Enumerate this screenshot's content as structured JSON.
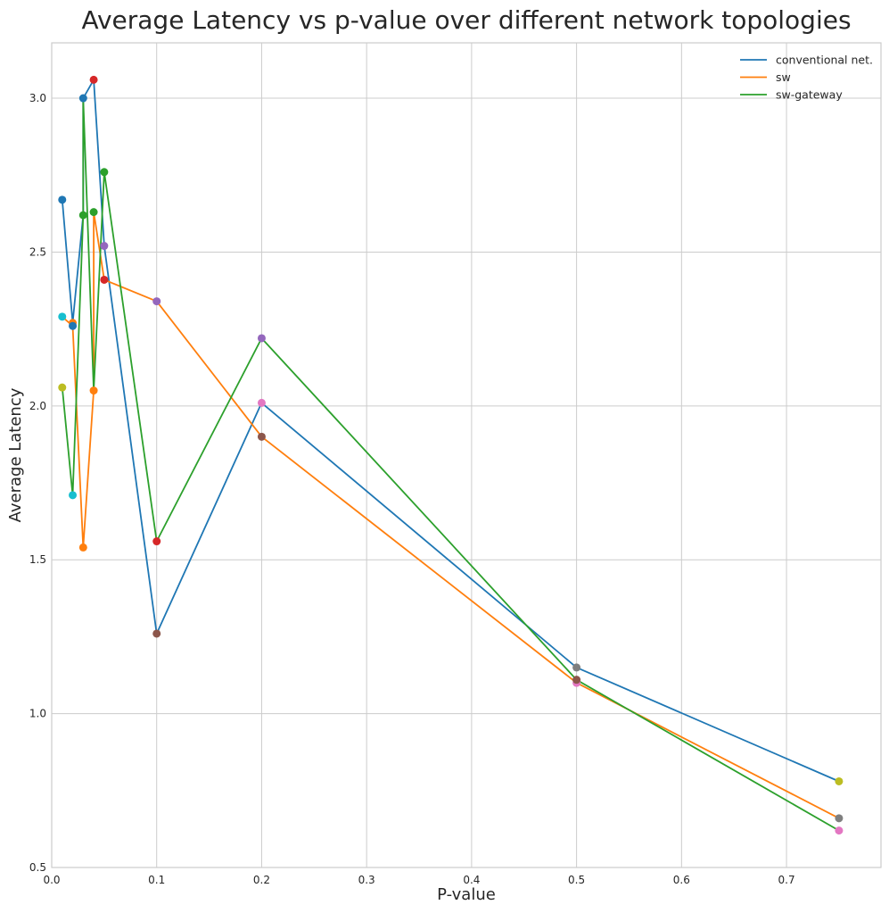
{
  "chart_data": {
    "type": "line",
    "title": "Average Latency vs p-value over different network topologies",
    "xlabel": "P-value",
    "ylabel": "Average Latency",
    "xlim": [
      0.0,
      0.79
    ],
    "ylim": [
      0.5,
      3.18
    ],
    "xticks": [
      "0.0",
      "0.1",
      "0.2",
      "0.3",
      "0.4",
      "0.5",
      "0.6",
      "0.7"
    ],
    "yticks": [
      "0.5",
      "1.0",
      "1.5",
      "2.0",
      "2.5",
      "3.0"
    ],
    "grid": true,
    "legend_position": "top-right",
    "series": [
      {
        "name": "conventional net.",
        "color": "#1f77b4",
        "points": [
          {
            "x": 0.01,
            "y": 2.67
          },
          {
            "x": 0.02,
            "y": 2.27
          },
          {
            "x": 0.03,
            "y": 2.62
          },
          {
            "x": 0.03,
            "y": 3.0
          },
          {
            "x": 0.04,
            "y": 3.06
          },
          {
            "x": 0.05,
            "y": 2.52
          },
          {
            "x": 0.1,
            "y": 1.26
          },
          {
            "x": 0.2,
            "y": 2.01
          },
          {
            "x": 0.5,
            "y": 1.15
          },
          {
            "x": 0.75,
            "y": 0.78
          }
        ]
      },
      {
        "name": "sw",
        "color": "#ff7f0e",
        "points": [
          {
            "x": 0.01,
            "y": 2.29
          },
          {
            "x": 0.02,
            "y": 2.26
          },
          {
            "x": 0.03,
            "y": 1.54
          },
          {
            "x": 0.04,
            "y": 2.05
          },
          {
            "x": 0.04,
            "y": 2.63
          },
          {
            "x": 0.05,
            "y": 2.41
          },
          {
            "x": 0.1,
            "y": 2.34
          },
          {
            "x": 0.2,
            "y": 1.9
          },
          {
            "x": 0.5,
            "y": 1.1
          },
          {
            "x": 0.75,
            "y": 0.66
          }
        ]
      },
      {
        "name": "sw-gateway",
        "color": "#2ca02c",
        "points": [
          {
            "x": 0.01,
            "y": 2.06
          },
          {
            "x": 0.02,
            "y": 1.71
          },
          {
            "x": 0.03,
            "y": 2.62
          },
          {
            "x": 0.03,
            "y": 3.0
          },
          {
            "x": 0.04,
            "y": 2.05
          },
          {
            "x": 0.05,
            "y": 2.76
          },
          {
            "x": 0.1,
            "y": 1.56
          },
          {
            "x": 0.2,
            "y": 2.22
          },
          {
            "x": 0.5,
            "y": 1.11
          },
          {
            "x": 0.75,
            "y": 0.62
          }
        ]
      }
    ],
    "scatter_points": [
      {
        "x": 0.01,
        "y": 2.67,
        "color": "#1f77b4"
      },
      {
        "x": 0.02,
        "y": 2.27,
        "color": "#ff7f0e"
      },
      {
        "x": 0.03,
        "y": 2.62,
        "color": "#2ca02c"
      },
      {
        "x": 0.04,
        "y": 3.06,
        "color": "#d62728"
      },
      {
        "x": 0.05,
        "y": 2.52,
        "color": "#9467bd"
      },
      {
        "x": 0.1,
        "y": 1.26,
        "color": "#8c564b"
      },
      {
        "x": 0.2,
        "y": 2.01,
        "color": "#e377c2"
      },
      {
        "x": 0.5,
        "y": 1.15,
        "color": "#7f7f7f"
      },
      {
        "x": 0.75,
        "y": 0.78,
        "color": "#bcbd22"
      },
      {
        "x": 0.01,
        "y": 2.29,
        "color": "#17becf"
      },
      {
        "x": 0.02,
        "y": 2.26,
        "color": "#1f77b4"
      },
      {
        "x": 0.03,
        "y": 1.54,
        "color": "#ff7f0e"
      },
      {
        "x": 0.04,
        "y": 2.63,
        "color": "#2ca02c"
      },
      {
        "x": 0.05,
        "y": 2.41,
        "color": "#d62728"
      },
      {
        "x": 0.1,
        "y": 2.34,
        "color": "#9467bd"
      },
      {
        "x": 0.2,
        "y": 1.9,
        "color": "#8c564b"
      },
      {
        "x": 0.5,
        "y": 1.1,
        "color": "#e377c2"
      },
      {
        "x": 0.75,
        "y": 0.66,
        "color": "#7f7f7f"
      },
      {
        "x": 0.01,
        "y": 2.06,
        "color": "#bcbd22"
      },
      {
        "x": 0.02,
        "y": 1.71,
        "color": "#17becf"
      },
      {
        "x": 0.03,
        "y": 3.0,
        "color": "#1f77b4"
      },
      {
        "x": 0.04,
        "y": 2.05,
        "color": "#ff7f0e"
      },
      {
        "x": 0.05,
        "y": 2.76,
        "color": "#2ca02c"
      },
      {
        "x": 0.1,
        "y": 1.56,
        "color": "#d62728"
      },
      {
        "x": 0.2,
        "y": 2.22,
        "color": "#9467bd"
      },
      {
        "x": 0.5,
        "y": 1.11,
        "color": "#8c564b"
      },
      {
        "x": 0.75,
        "y": 0.62,
        "color": "#e377c2"
      }
    ]
  }
}
